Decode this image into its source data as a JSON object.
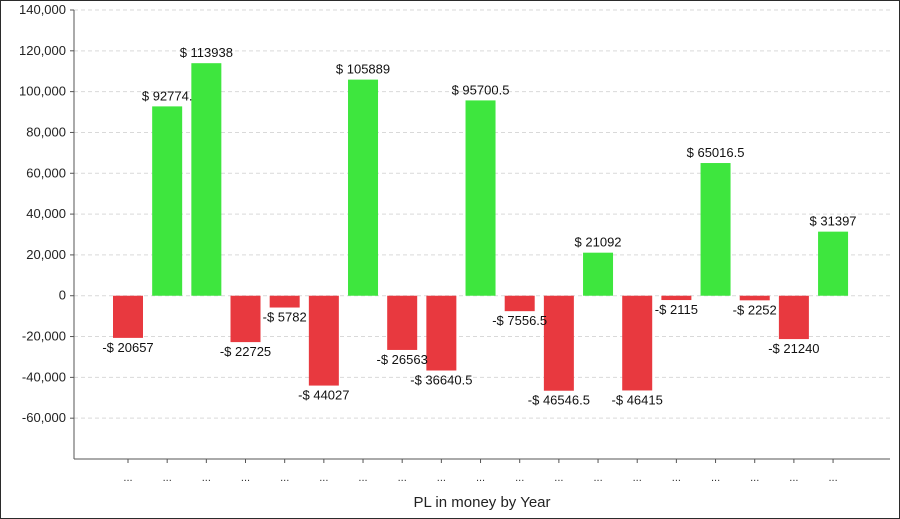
{
  "chart_data": {
    "type": "bar",
    "xlabel": "PL in money by Year",
    "ylabel": "",
    "ylim": [
      -80000,
      140000
    ],
    "yticks": [
      140000,
      120000,
      100000,
      80000,
      60000,
      40000,
      20000,
      0,
      -20000,
      -40000,
      -60000
    ],
    "ytick_labels": [
      "140,000",
      "120,000",
      "100,000",
      "80,000",
      "60,000",
      "40,000",
      "20,000",
      "0",
      "-20,000",
      "-40,000",
      "-60,000"
    ],
    "grid": true,
    "legend": "none",
    "categories": [
      "...",
      "...",
      "...",
      "...",
      "...",
      "...",
      "...",
      "...",
      "...",
      "...",
      "...",
      "...",
      "...",
      "...",
      "...",
      "...",
      "...",
      "...",
      "..."
    ],
    "values": [
      -20657,
      92774,
      113938,
      -22725,
      -5782,
      -44027,
      105889,
      -26563,
      -36640.5,
      95700.5,
      -7556.5,
      -46546.5,
      21092,
      -46415,
      -2115,
      65016.5,
      -2252,
      -21240,
      31397
    ],
    "data_labels": [
      "-$ 20657",
      "$ 92774.",
      "$ 113938",
      "-$ 22725",
      "-$ 5782",
      "-$ 44027",
      "$ 105889",
      "-$ 26563",
      "-$ 36640.5",
      "$ 95700.5",
      "-$ 7556.5",
      "-$ 46546.5",
      "$ 21092",
      "-$ 46415",
      "-$ 2115",
      "$ 65016.5",
      "-$ 2252",
      "-$ 21240",
      "$ 31397"
    ],
    "colors": {
      "positive": "#3ee63e",
      "negative": "#e8393f",
      "grid": "#d9d9d9",
      "axis": "#555555"
    }
  }
}
